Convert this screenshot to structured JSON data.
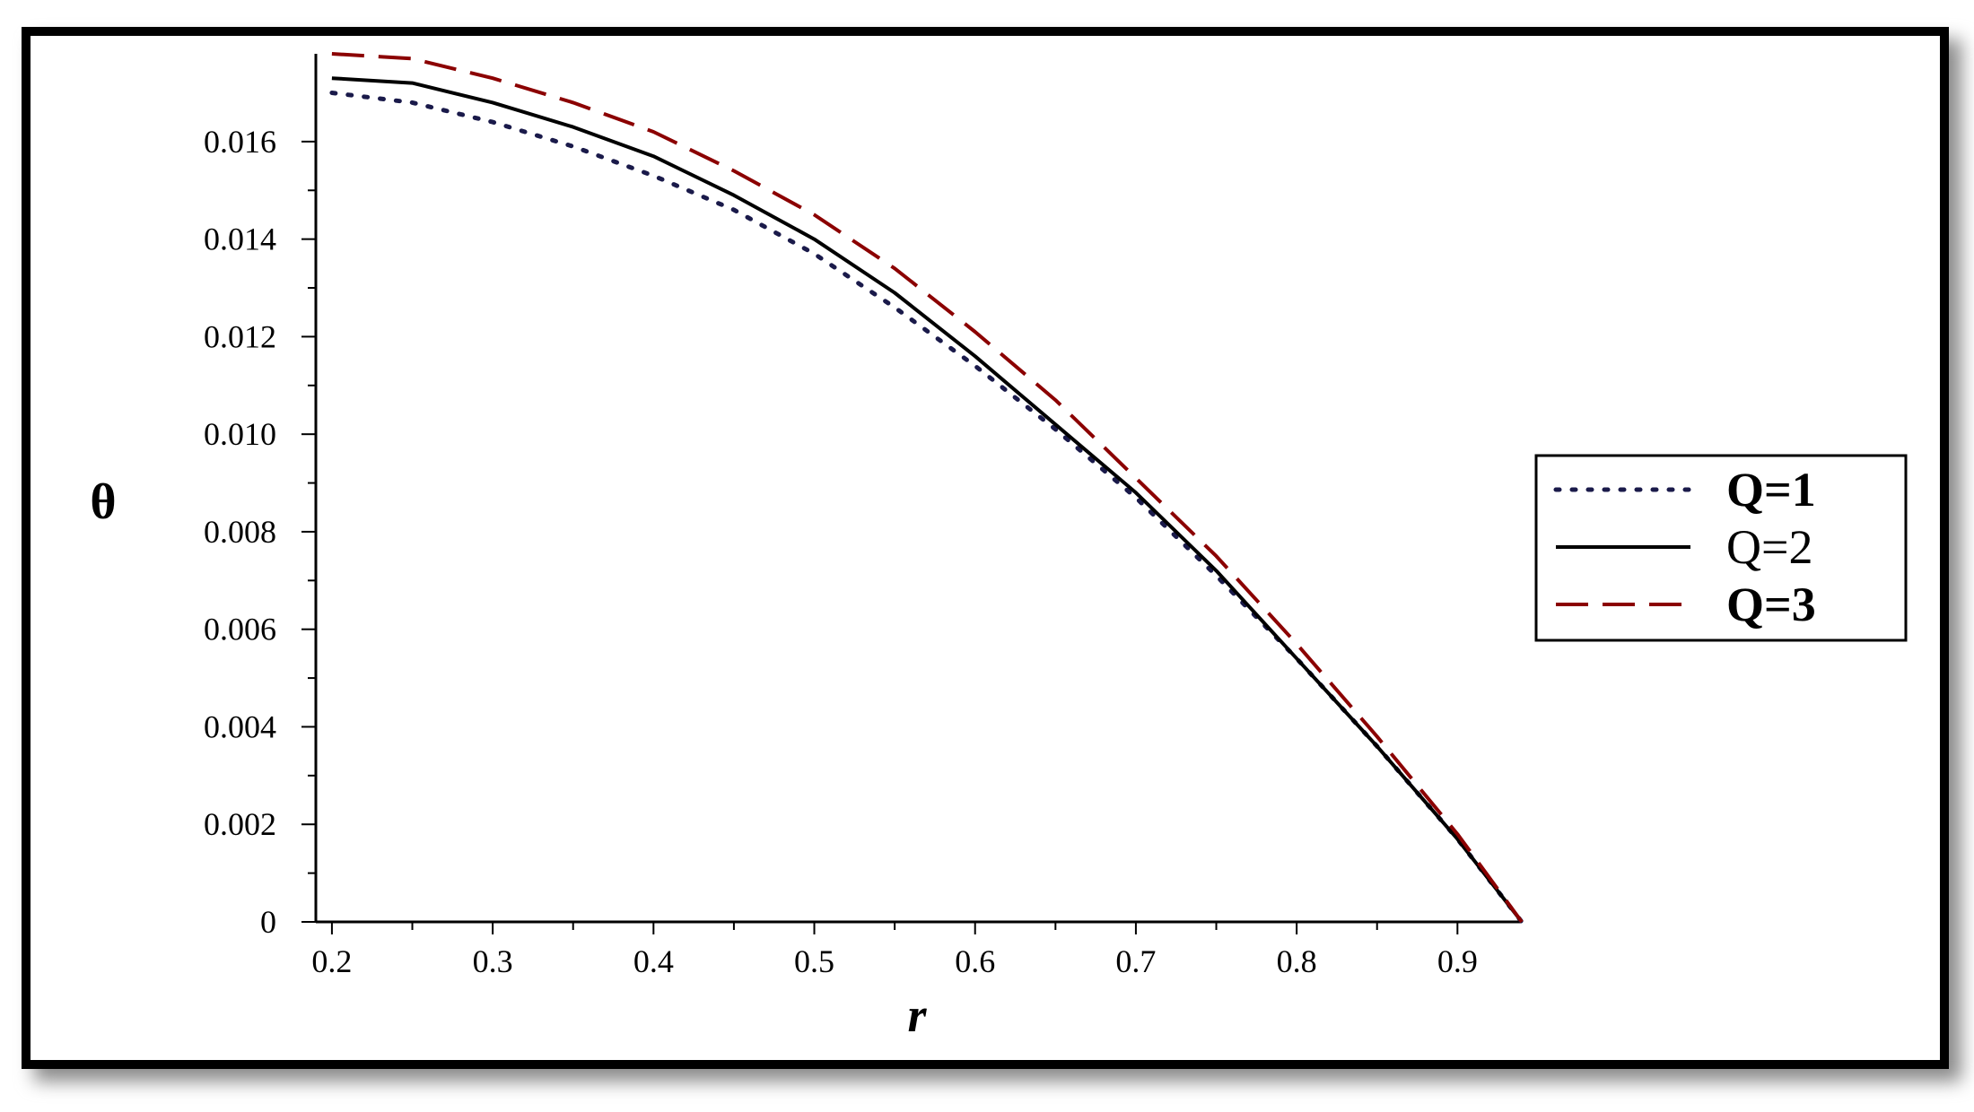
{
  "chart_data": {
    "type": "line",
    "title": "",
    "xlabel": "r",
    "ylabel": "θ",
    "xlim": [
      0.19,
      0.94
    ],
    "ylim": [
      0,
      0.0178
    ],
    "x_ticks": [
      0.2,
      0.3,
      0.4,
      0.5,
      0.6,
      0.7,
      0.8,
      0.9
    ],
    "x_tick_labels": [
      "0.2",
      "0.3",
      "0.4",
      "0.5",
      "0.6",
      "0.7",
      "0.8",
      "0.9"
    ],
    "y_ticks": [
      0,
      0.002,
      0.004,
      0.006,
      0.008,
      0.01,
      0.012,
      0.014,
      0.016
    ],
    "y_tick_labels": [
      "0",
      "0.002",
      "0.004",
      "0.006",
      "0.008",
      "0.010",
      "0.012",
      "0.014",
      "0.016"
    ],
    "grid": false,
    "legend_position": "right",
    "x": [
      0.2,
      0.25,
      0.3,
      0.35,
      0.4,
      0.45,
      0.5,
      0.55,
      0.6,
      0.65,
      0.7,
      0.75,
      0.8,
      0.85,
      0.9,
      0.94
    ],
    "series": [
      {
        "name": "Q=1",
        "style": "dotted",
        "color": "#1a1a4a",
        "values": [
          0.017,
          0.0168,
          0.0164,
          0.0159,
          0.0153,
          0.0146,
          0.0137,
          0.0126,
          0.0114,
          0.0101,
          0.0087,
          0.0071,
          0.0054,
          0.0036,
          0.0017,
          0.0
        ]
      },
      {
        "name": "Q=2",
        "style": "solid",
        "color": "#000000",
        "values": [
          0.0173,
          0.0172,
          0.0168,
          0.0163,
          0.0157,
          0.0149,
          0.014,
          0.0129,
          0.0116,
          0.0102,
          0.0088,
          0.0072,
          0.0054,
          0.0036,
          0.0017,
          0.0
        ]
      },
      {
        "name": "Q=3",
        "style": "dashed",
        "color": "#8b0000",
        "values": [
          0.0178,
          0.0177,
          0.0173,
          0.0168,
          0.0162,
          0.0154,
          0.0145,
          0.0134,
          0.0121,
          0.0107,
          0.0091,
          0.0075,
          0.0057,
          0.0038,
          0.0018,
          0.0
        ]
      }
    ]
  }
}
